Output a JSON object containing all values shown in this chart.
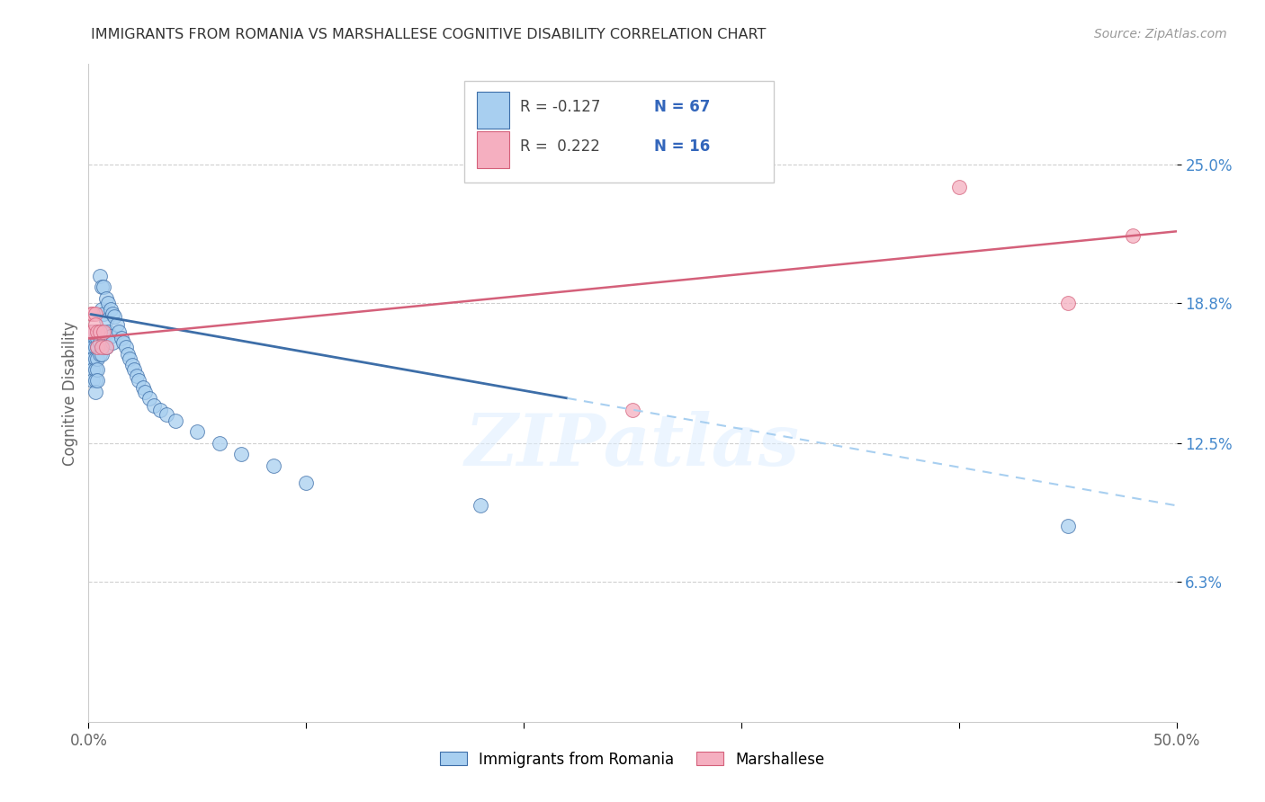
{
  "title": "IMMIGRANTS FROM ROMANIA VS MARSHALLESE COGNITIVE DISABILITY CORRELATION CHART",
  "source": "Source: ZipAtlas.com",
  "ylabel": "Cognitive Disability",
  "legend_romania": "Immigrants from Romania",
  "legend_marshallese": "Marshallese",
  "legend_r_romania": "R = -0.127",
  "legend_n_romania": "N = 67",
  "legend_r_marshallese": "R =  0.222",
  "legend_n_marshallese": "N = 16",
  "xlim": [
    0.0,
    0.5
  ],
  "ylim": [
    0.0,
    0.295
  ],
  "yticks": [
    0.063,
    0.125,
    0.188,
    0.25
  ],
  "ytick_labels": [
    "6.3%",
    "12.5%",
    "18.8%",
    "25.0%"
  ],
  "xticks": [
    0.0,
    0.1,
    0.2,
    0.3,
    0.4,
    0.5
  ],
  "xtick_labels": [
    "0.0%",
    "",
    "",
    "",
    "",
    "50.0%"
  ],
  "color_romania": "#a8cff0",
  "color_marshallese": "#f5afc0",
  "color_line_romania": "#3d6ea8",
  "color_line_marshallese": "#d4607a",
  "color_line_romania_dashed": "#a8cff0",
  "watermark": "ZIPatlas",
  "romania_x": [
    0.001,
    0.001,
    0.001,
    0.002,
    0.002,
    0.002,
    0.002,
    0.002,
    0.002,
    0.003,
    0.003,
    0.003,
    0.003,
    0.003,
    0.003,
    0.003,
    0.004,
    0.004,
    0.004,
    0.004,
    0.004,
    0.005,
    0.005,
    0.005,
    0.005,
    0.006,
    0.006,
    0.006,
    0.006,
    0.007,
    0.007,
    0.007,
    0.008,
    0.008,
    0.008,
    0.009,
    0.009,
    0.01,
    0.01,
    0.011,
    0.011,
    0.012,
    0.013,
    0.014,
    0.015,
    0.016,
    0.017,
    0.018,
    0.019,
    0.02,
    0.021,
    0.022,
    0.023,
    0.025,
    0.026,
    0.028,
    0.03,
    0.033,
    0.036,
    0.04,
    0.05,
    0.06,
    0.07,
    0.085,
    0.1,
    0.18,
    0.45
  ],
  "romania_y": [
    0.175,
    0.168,
    0.162,
    0.175,
    0.172,
    0.168,
    0.163,
    0.158,
    0.153,
    0.175,
    0.172,
    0.168,
    0.163,
    0.158,
    0.153,
    0.148,
    0.172,
    0.168,
    0.163,
    0.158,
    0.153,
    0.2,
    0.175,
    0.17,
    0.165,
    0.195,
    0.185,
    0.175,
    0.165,
    0.195,
    0.183,
    0.17,
    0.19,
    0.18,
    0.168,
    0.188,
    0.175,
    0.185,
    0.173,
    0.183,
    0.17,
    0.182,
    0.178,
    0.175,
    0.172,
    0.17,
    0.168,
    0.165,
    0.163,
    0.16,
    0.158,
    0.155,
    0.153,
    0.15,
    0.148,
    0.145,
    0.142,
    0.14,
    0.138,
    0.135,
    0.13,
    0.125,
    0.12,
    0.115,
    0.107,
    0.097,
    0.088
  ],
  "marshallese_x": [
    0.001,
    0.001,
    0.002,
    0.002,
    0.003,
    0.003,
    0.004,
    0.004,
    0.005,
    0.006,
    0.007,
    0.008,
    0.25,
    0.4,
    0.45,
    0.48
  ],
  "marshallese_y": [
    0.183,
    0.175,
    0.183,
    0.175,
    0.183,
    0.178,
    0.175,
    0.168,
    0.175,
    0.168,
    0.175,
    0.168,
    0.14,
    0.24,
    0.188,
    0.218
  ],
  "line_romania_x_solid_start": 0.001,
  "line_romania_x_solid_end": 0.22,
  "line_romania_x_dashed_start": 0.22,
  "line_romania_x_dashed_end": 0.5,
  "line_romania_y_at_0": 0.183,
  "line_romania_y_at_050": 0.097,
  "line_marshallese_y_at_0": 0.172,
  "line_marshallese_y_at_050": 0.22
}
